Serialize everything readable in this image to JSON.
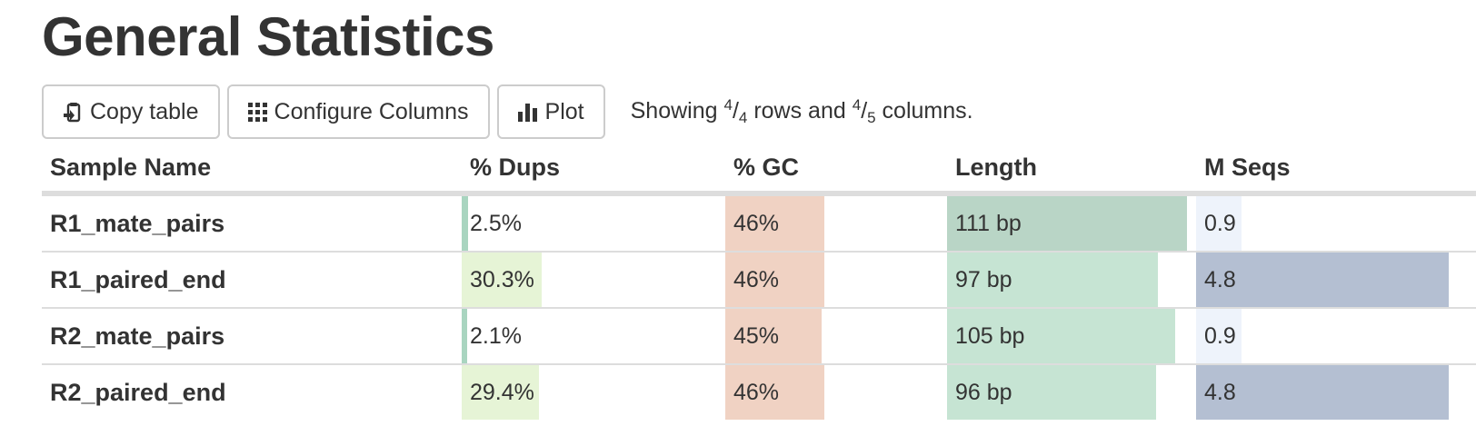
{
  "title": "General Statistics",
  "toolbar": {
    "copy_label": "Copy table",
    "configure_label": "Configure Columns",
    "plot_label": "Plot",
    "showing": {
      "prefix": "Showing ",
      "rows_shown": "4",
      "rows_total": "4",
      "middle": " rows and ",
      "cols_shown": "4",
      "cols_total": "5",
      "suffix": " columns."
    }
  },
  "columns": {
    "sample": "Sample Name",
    "dups": "% Dups",
    "gc": "% GC",
    "length": "Length",
    "mseqs": "M Seqs"
  },
  "colors": {
    "dups_low": "#a9d5c0",
    "dups_high": "#e6f4d6",
    "gc": "#f0d2c3",
    "length_max": "#b9d5c6",
    "length": "#c6e4d3",
    "mseqs_low": "#eef3fb",
    "mseqs_high": "#b4bfd2"
  },
  "rows": [
    {
      "sample": "R1_mate_pairs",
      "dups": "2.5%",
      "dups_frac": 0.025,
      "gc": "46%",
      "gc_frac": 0.46,
      "length": "111 bp",
      "length_frac": 1.0,
      "mseqs": "0.9",
      "mseqs_frac": 0.18
    },
    {
      "sample": "R1_paired_end",
      "dups": "30.3%",
      "dups_frac": 0.303,
      "gc": "46%",
      "gc_frac": 0.46,
      "length": "97 bp",
      "length_frac": 0.88,
      "mseqs": "4.8",
      "mseqs_frac": 1.0
    },
    {
      "sample": "R2_mate_pairs",
      "dups": "2.1%",
      "dups_frac": 0.021,
      "gc": "45%",
      "gc_frac": 0.45,
      "length": "105 bp",
      "length_frac": 0.95,
      "mseqs": "0.9",
      "mseqs_frac": 0.18
    },
    {
      "sample": "R2_paired_end",
      "dups": "29.4%",
      "dups_frac": 0.294,
      "gc": "46%",
      "gc_frac": 0.46,
      "length": "96 bp",
      "length_frac": 0.87,
      "mseqs": "4.8",
      "mseqs_frac": 1.0
    }
  ]
}
